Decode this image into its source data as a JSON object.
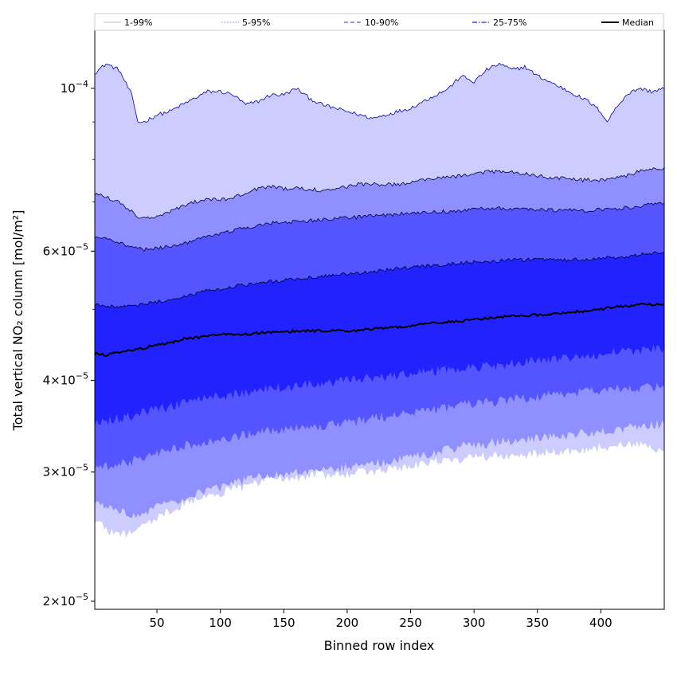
{
  "chart_data": {
    "type": "area",
    "title": "",
    "xlabel": "Binned row index",
    "ylabel": "Total vertical NO₂ column [mol/m²]",
    "yscale": "log",
    "xlim": [
      1,
      450
    ],
    "ylim": [
      1.95e-05,
      0.00012
    ],
    "x_ticks": [
      50,
      100,
      150,
      200,
      250,
      300,
      350,
      400
    ],
    "y_ticks": [
      {
        "value": 2e-05,
        "mantissa": "2",
        "label": "2×10⁻⁵"
      },
      {
        "value": 3e-05,
        "mantissa": "3",
        "label": "3×10⁻⁵"
      },
      {
        "value": 4e-05,
        "mantissa": "4",
        "label": "4×10⁻⁵"
      },
      {
        "value": 6e-05,
        "mantissa": "6",
        "label": "6×10⁻⁵"
      },
      {
        "value": 0.0001,
        "mantissa": "",
        "label": "10⁻⁴"
      }
    ],
    "y_minor_ticks": [
      2e-05,
      3e-05,
      4e-05,
      5e-05,
      6e-05,
      7e-05,
      8e-05,
      9e-05
    ],
    "legend_position": "top",
    "x": [
      1,
      10,
      20,
      30,
      35,
      40,
      50,
      60,
      70,
      80,
      90,
      100,
      110,
      120,
      130,
      140,
      150,
      160,
      170,
      180,
      190,
      200,
      210,
      220,
      230,
      240,
      250,
      260,
      270,
      280,
      290,
      300,
      310,
      320,
      330,
      340,
      350,
      360,
      370,
      380,
      390,
      400,
      405,
      410,
      420,
      430,
      440,
      450
    ],
    "bands": [
      {
        "name": "1-99%",
        "fill": "#ccccff",
        "line_style": "solid",
        "lower": [
          2.6e-05,
          2.5e-05,
          2.45e-05,
          2.5e-05,
          2.5e-05,
          2.55e-05,
          2.6e-05,
          2.65e-05,
          2.7e-05,
          2.75e-05,
          2.78e-05,
          2.8e-05,
          2.85e-05,
          2.85e-05,
          2.9e-05,
          2.95e-05,
          2.95e-05,
          2.95e-05,
          2.97e-05,
          2.97e-05,
          2.98e-05,
          2.98e-05,
          3e-05,
          3e-05,
          3.02e-05,
          3.05e-05,
          3.05e-05,
          3.08e-05,
          3.1e-05,
          3.1e-05,
          3.12e-05,
          3.15e-05,
          3.15e-05,
          3.15e-05,
          3.15e-05,
          3.15e-05,
          3.18e-05,
          3.2e-05,
          3.2e-05,
          3.2e-05,
          3.22e-05,
          3.25e-05,
          3.25e-05,
          3.25e-05,
          3.25e-05,
          3.28e-05,
          3.25e-05,
          3.2e-05
        ],
        "upper": [
          0.000105,
          0.000108,
          0.000106,
          9.8e-05,
          9e-05,
          9e-05,
          9.2e-05,
          9.3e-05,
          9.5e-05,
          9.7e-05,
          9.9e-05,
          9.9e-05,
          9.8e-05,
          9.5e-05,
          9.6e-05,
          9.8e-05,
          9.8e-05,
          0.0001,
          9.7e-05,
          9.5e-05,
          9.4e-05,
          9.3e-05,
          9.2e-05,
          9.1e-05,
          9.2e-05,
          9.3e-05,
          9.4e-05,
          9.6e-05,
          9.8e-05,
          0.0001,
          0.000104,
          0.000102,
          0.000106,
          0.000108,
          0.000106,
          0.000107,
          0.000104,
          0.000102,
          0.0001,
          9.8e-05,
          9.6e-05,
          9.3e-05,
          9e-05,
          9.3e-05,
          9.8e-05,
          0.0001,
          9.9e-05,
          0.0001
        ]
      },
      {
        "name": "5-95%",
        "fill": "#8f8fff",
        "line_style": "dotted",
        "lower": [
          2.75e-05,
          2.7e-05,
          2.65e-05,
          2.63e-05,
          2.62e-05,
          2.65e-05,
          2.68e-05,
          2.72e-05,
          2.75e-05,
          2.8e-05,
          2.83e-05,
          2.85e-05,
          2.9e-05,
          2.92e-05,
          2.95e-05,
          2.97e-05,
          2.98e-05,
          3e-05,
          3e-05,
          3.02e-05,
          3.02e-05,
          3.05e-05,
          3.07e-05,
          3.08e-05,
          3.1e-05,
          3.12e-05,
          3.15e-05,
          3.17e-05,
          3.2e-05,
          3.22e-05,
          3.25e-05,
          3.27e-05,
          3.28e-05,
          3.3e-05,
          3.3e-05,
          3.32e-05,
          3.33e-05,
          3.35e-05,
          3.36e-05,
          3.38e-05,
          3.4e-05,
          3.4e-05,
          3.42e-05,
          3.43e-05,
          3.45e-05,
          3.47e-05,
          3.48e-05,
          3.48e-05
        ],
        "upper": [
          7.2e-05,
          7.1e-05,
          7e-05,
          6.8e-05,
          6.7e-05,
          6.65e-05,
          6.7e-05,
          6.8e-05,
          6.9e-05,
          7e-05,
          7.05e-05,
          7.05e-05,
          7.1e-05,
          7.2e-05,
          7.3e-05,
          7.35e-05,
          7.3e-05,
          7.3e-05,
          7.3e-05,
          7.25e-05,
          7.3e-05,
          7.35e-05,
          7.4e-05,
          7.4e-05,
          7.4e-05,
          7.4e-05,
          7.45e-05,
          7.5e-05,
          7.55e-05,
          7.58e-05,
          7.6e-05,
          7.65e-05,
          7.7e-05,
          7.7e-05,
          7.68e-05,
          7.65e-05,
          7.6e-05,
          7.55e-05,
          7.55e-05,
          7.5e-05,
          7.5e-05,
          7.5e-05,
          7.52e-05,
          7.55e-05,
          7.6e-05,
          7.7e-05,
          7.75e-05,
          7.8e-05
        ]
      },
      {
        "name": "10-90%",
        "fill": "#5555ff",
        "line_style": "dashed",
        "lower": [
          3.05e-05,
          3.05e-05,
          3.07e-05,
          3.1e-05,
          3.12e-05,
          3.15e-05,
          3.18e-05,
          3.22e-05,
          3.25e-05,
          3.28e-05,
          3.3e-05,
          3.33e-05,
          3.35e-05,
          3.37e-05,
          3.4e-05,
          3.42e-05,
          3.42e-05,
          3.45e-05,
          3.45e-05,
          3.47e-05,
          3.5e-05,
          3.5e-05,
          3.52e-05,
          3.55e-05,
          3.57e-05,
          3.6e-05,
          3.62e-05,
          3.63e-05,
          3.65e-05,
          3.67e-05,
          3.7e-05,
          3.72e-05,
          3.73e-05,
          3.75e-05,
          3.77e-05,
          3.78e-05,
          3.8e-05,
          3.82e-05,
          3.83e-05,
          3.85e-05,
          3.86e-05,
          3.87e-05,
          3.88e-05,
          3.89e-05,
          3.9e-05,
          3.91e-05,
          3.92e-05,
          3.93e-05
        ],
        "upper": [
          6.3e-05,
          6.25e-05,
          6.15e-05,
          6.08e-05,
          6.05e-05,
          6.03e-05,
          6.05e-05,
          6.1e-05,
          6.15e-05,
          6.2e-05,
          6.28e-05,
          6.35e-05,
          6.4e-05,
          6.45e-05,
          6.52e-05,
          6.55e-05,
          6.55e-05,
          6.58e-05,
          6.6e-05,
          6.62e-05,
          6.64e-05,
          6.66e-05,
          6.68e-05,
          6.7e-05,
          6.72e-05,
          6.74e-05,
          6.76e-05,
          6.78e-05,
          6.78e-05,
          6.8e-05,
          6.82e-05,
          6.85e-05,
          6.85e-05,
          6.86e-05,
          6.85e-05,
          6.85e-05,
          6.84e-05,
          6.83e-05,
          6.82e-05,
          6.82e-05,
          6.82e-05,
          6.83e-05,
          6.84e-05,
          6.85e-05,
          6.88e-05,
          6.9e-05,
          6.95e-05,
          6.98e-05
        ]
      },
      {
        "name": "25-75%",
        "fill": "#2222ff",
        "line_style": "dashdot",
        "lower": [
          3.5e-05,
          3.52e-05,
          3.55e-05,
          3.58e-05,
          3.6e-05,
          3.62e-05,
          3.65e-05,
          3.68e-05,
          3.72e-05,
          3.75e-05,
          3.78e-05,
          3.8e-05,
          3.83e-05,
          3.86e-05,
          3.88e-05,
          3.9e-05,
          3.92e-05,
          3.93e-05,
          3.95e-05,
          3.97e-05,
          3.98e-05,
          4e-05,
          4.02e-05,
          4.03e-05,
          4.05e-05,
          4.07e-05,
          4.08e-05,
          4.1e-05,
          4.12e-05,
          4.13e-05,
          4.15e-05,
          4.17e-05,
          4.18e-05,
          4.2e-05,
          4.22e-05,
          4.23e-05,
          4.25e-05,
          4.27e-05,
          4.28e-05,
          4.3e-05,
          4.32e-05,
          4.33e-05,
          4.35e-05,
          4.37e-05,
          4.38e-05,
          4.4e-05,
          4.42e-05,
          4.43e-05
        ],
        "upper": [
          5.07e-05,
          5.03e-05,
          5.05e-05,
          5.06e-05,
          5.07e-05,
          5.09e-05,
          5.12e-05,
          5.16e-05,
          5.2e-05,
          5.25e-05,
          5.3e-05,
          5.33e-05,
          5.37e-05,
          5.4e-05,
          5.43e-05,
          5.45e-05,
          5.47e-05,
          5.5e-05,
          5.52e-05,
          5.54e-05,
          5.56e-05,
          5.58e-05,
          5.6e-05,
          5.63e-05,
          5.65e-05,
          5.68e-05,
          5.7e-05,
          5.72e-05,
          5.74e-05,
          5.76e-05,
          5.78e-05,
          5.8e-05,
          5.81e-05,
          5.82e-05,
          5.83e-05,
          5.84e-05,
          5.84e-05,
          5.84e-05,
          5.84e-05,
          5.84e-05,
          5.85e-05,
          5.86e-05,
          5.87e-05,
          5.88e-05,
          5.9e-05,
          5.93e-05,
          5.96e-05,
          5.98e-05
        ]
      }
    ],
    "median": {
      "name": "Median",
      "color": "#000000",
      "values": [
        4.35e-05,
        4.33e-05,
        4.37e-05,
        4.39e-05,
        4.41e-05,
        4.43e-05,
        4.47e-05,
        4.5e-05,
        4.55e-05,
        4.57e-05,
        4.6e-05,
        4.62e-05,
        4.62e-05,
        4.62e-05,
        4.64e-05,
        4.65e-05,
        4.66e-05,
        4.67e-05,
        4.67e-05,
        4.68e-05,
        4.67e-05,
        4.67e-05,
        4.68e-05,
        4.7e-05,
        4.71e-05,
        4.73e-05,
        4.75e-05,
        4.77e-05,
        4.79e-05,
        4.81e-05,
        4.82e-05,
        4.84e-05,
        4.86e-05,
        4.88e-05,
        4.9e-05,
        4.9e-05,
        4.91e-05,
        4.92e-05,
        4.94e-05,
        4.96e-05,
        4.98e-05,
        5e-05,
        5.02e-05,
        5.03e-05,
        5.05e-05,
        5.08e-05,
        5.08e-05,
        5.07e-05
      ]
    },
    "legend": [
      {
        "label": "1-99%",
        "color": "#ccccff",
        "line_style": "solid"
      },
      {
        "label": "5-95%",
        "color": "#8f8fff",
        "line_style": "dotted"
      },
      {
        "label": "10-90%",
        "color": "#5555ff",
        "line_style": "dashed"
      },
      {
        "label": "25-75%",
        "color": "#2222ff",
        "line_style": "dashdot"
      },
      {
        "label": "Median",
        "color": "#000000",
        "line_style": "solid"
      }
    ]
  }
}
